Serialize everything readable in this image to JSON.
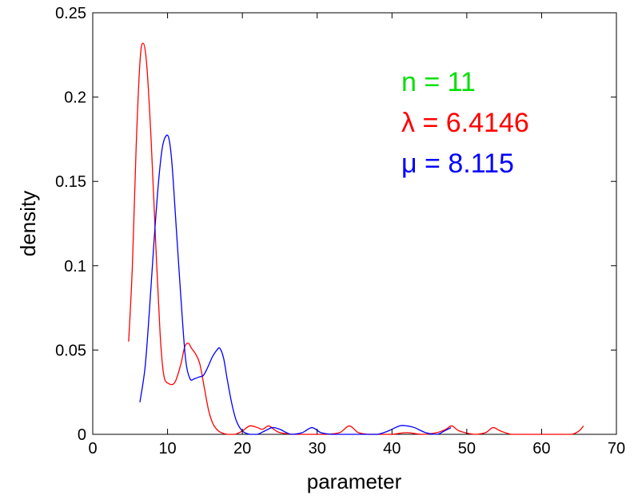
{
  "chart_data": {
    "type": "line",
    "title": "",
    "xlabel": "parameter",
    "ylabel": "density",
    "xlim": [
      0,
      70
    ],
    "ylim": [
      0,
      0.25
    ],
    "xticks": [
      0,
      10,
      20,
      30,
      40,
      50,
      60,
      70
    ],
    "yticks": [
      0,
      0.05,
      0.1,
      0.15,
      0.2,
      0.25
    ],
    "xtick_labels": [
      "0",
      "10",
      "20",
      "30",
      "40",
      "50",
      "60",
      "70"
    ],
    "ytick_labels": [
      "0",
      "0.05",
      "0.1",
      "0.15",
      "0.2",
      "0.25"
    ],
    "grid": false,
    "annotations": [
      {
        "text": "n = 11",
        "color": "#00e000"
      },
      {
        "text": "λ = 6.4146",
        "color": "#ff0000"
      },
      {
        "text": "μ = 8.115",
        "color": "#0000ff"
      }
    ],
    "series": [
      {
        "color": "#ff0000",
        "x": [
          4.8,
          5.3,
          5.8,
          6.3,
          6.7,
          7.2,
          7.8,
          8.4,
          9.0,
          9.5,
          10.2,
          11.0,
          11.8,
          12.3,
          12.8,
          13.2,
          13.7,
          14.3,
          14.9,
          15.5,
          16.1,
          16.8,
          17.5,
          18.2,
          19.0,
          20.0,
          21.0,
          22.0,
          22.7,
          23.5,
          24.2,
          25.0,
          27.0,
          29.0,
          31.0,
          33.0,
          34.3,
          35.5,
          37.0,
          38.5,
          40.0,
          42.0,
          44.0,
          46.0,
          47.2,
          48.0,
          49.0,
          51.0,
          52.5,
          53.5,
          54.5,
          56.0,
          58.0,
          60.0,
          62.0,
          64.0,
          65.0,
          65.6
        ],
        "y": [
          0.055,
          0.1,
          0.17,
          0.22,
          0.232,
          0.22,
          0.175,
          0.115,
          0.06,
          0.035,
          0.03,
          0.031,
          0.042,
          0.052,
          0.054,
          0.051,
          0.048,
          0.042,
          0.028,
          0.014,
          0.006,
          0.002,
          0.0005,
          0.0,
          0.0,
          0.002,
          0.005,
          0.004,
          0.003,
          0.005,
          0.003,
          0.001,
          0.0,
          0.0,
          0.0,
          0.001,
          0.005,
          0.001,
          0.0,
          0.0,
          0.0,
          0.001,
          0.0,
          0.001,
          0.003,
          0.005,
          0.002,
          0.0,
          0.001,
          0.004,
          0.002,
          0.0,
          0.0,
          0.0,
          0.0,
          0.0,
          0.002,
          0.005
        ]
      },
      {
        "color": "#0000ff",
        "x": [
          6.3,
          7.0,
          7.6,
          8.2,
          8.8,
          9.3,
          9.8,
          10.2,
          10.6,
          11.2,
          11.8,
          12.4,
          13.0,
          13.6,
          14.2,
          14.8,
          15.4,
          16.0,
          16.6,
          17.0,
          17.5,
          18.0,
          18.6,
          19.2,
          20.0,
          21.0,
          22.0,
          23.0,
          24.0,
          25.0,
          26.5,
          28.0,
          29.3,
          30.5,
          32.0,
          34.0,
          36.0,
          38.0,
          39.5,
          41.0,
          42.0,
          43.0,
          44.5,
          46.0,
          47.0,
          47.9
        ],
        "y": [
          0.019,
          0.04,
          0.075,
          0.115,
          0.15,
          0.17,
          0.177,
          0.175,
          0.16,
          0.12,
          0.08,
          0.045,
          0.033,
          0.033,
          0.034,
          0.035,
          0.04,
          0.046,
          0.05,
          0.051,
          0.045,
          0.032,
          0.018,
          0.008,
          0.002,
          0.0,
          0.0,
          0.002,
          0.004,
          0.003,
          0.0,
          0.001,
          0.004,
          0.001,
          0.0,
          0.0,
          0.0,
          0.0,
          0.002,
          0.005,
          0.005,
          0.004,
          0.001,
          0.0,
          0.002,
          0.004
        ]
      }
    ]
  }
}
